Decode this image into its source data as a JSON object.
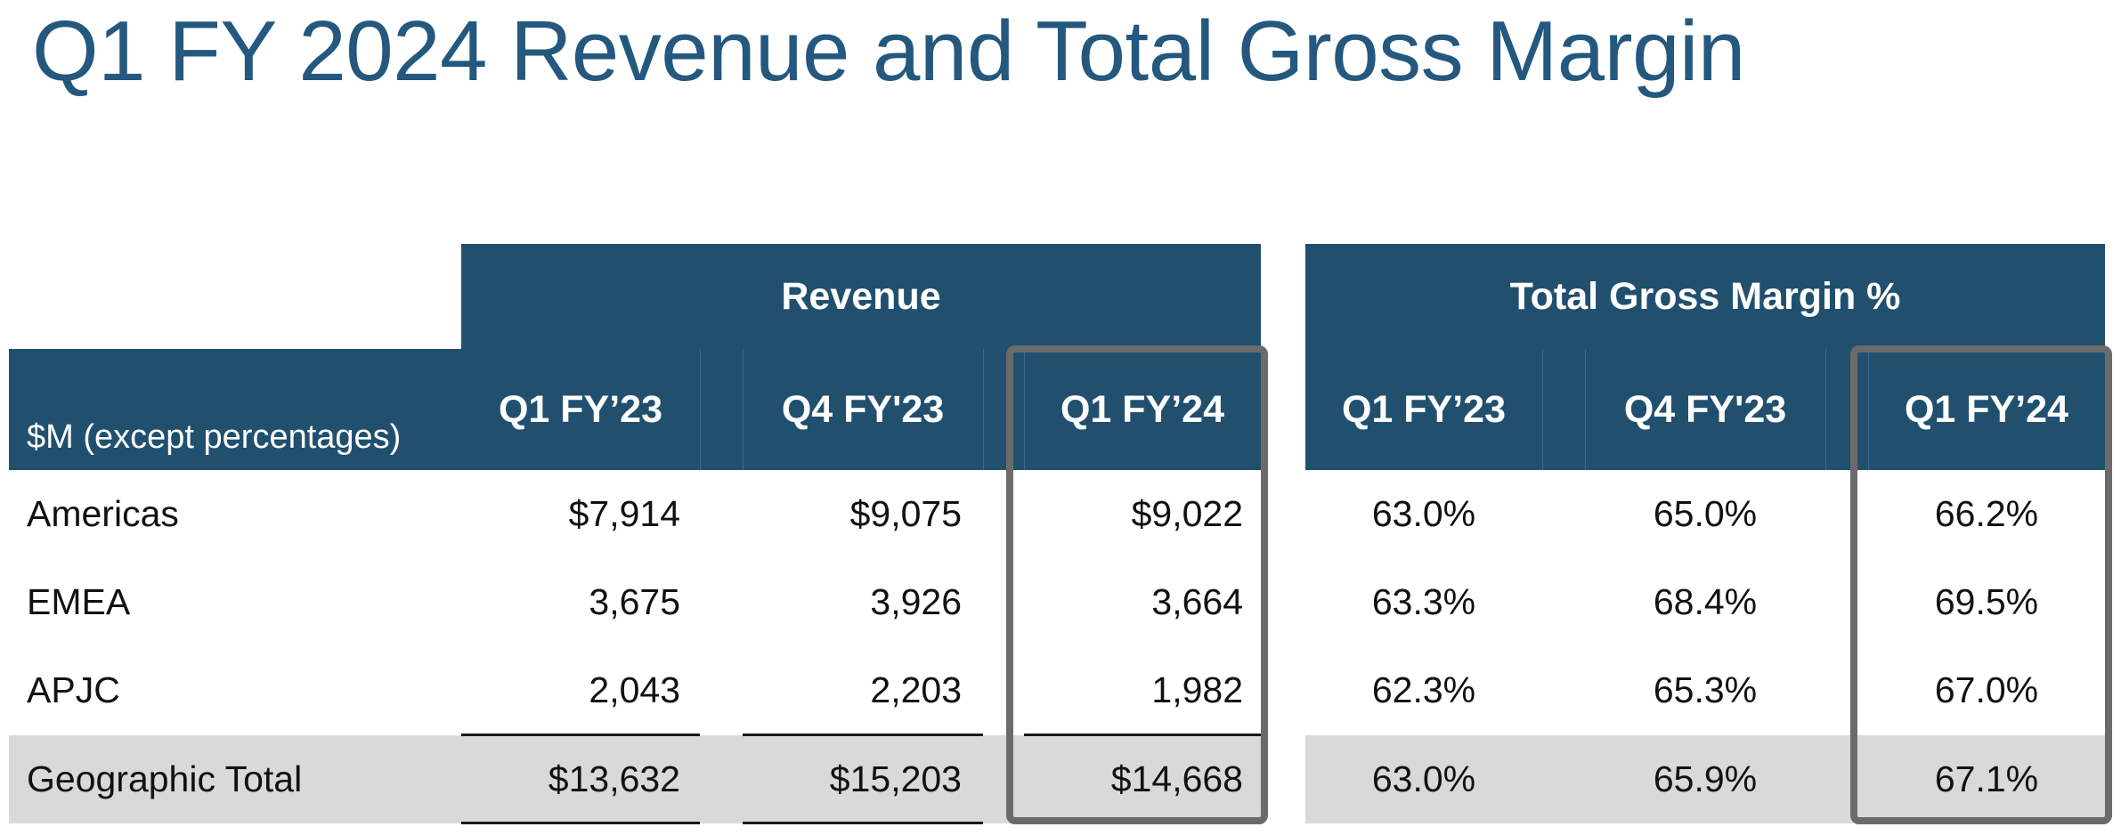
{
  "title": "Q1 FY 2024 Revenue and Total Gross Margin",
  "table": {
    "units_label": "$M (except percentages)",
    "revenue_group": "Revenue",
    "margin_group": "Total Gross Margin %",
    "columns": [
      "Q1 FY’23",
      "Q4 FY'23",
      "Q1 FY’24"
    ],
    "margin_columns": [
      "Q1 FY’23",
      "Q4 FY'23",
      "Q1 FY’24"
    ],
    "rows": [
      {
        "label": "Americas",
        "revenue": [
          "$7,914",
          "$9,075",
          "$9,022"
        ],
        "margin": [
          "63.0%",
          "65.0%",
          "66.2%"
        ]
      },
      {
        "label": "EMEA",
        "revenue": [
          "3,675",
          "3,926",
          "3,664"
        ],
        "margin": [
          "63.3%",
          "68.4%",
          "69.5%"
        ]
      },
      {
        "label": "APJC",
        "revenue": [
          "2,043",
          "2,203",
          "1,982"
        ],
        "margin": [
          "62.3%",
          "65.3%",
          "67.0%"
        ]
      },
      {
        "label": "Geographic Total",
        "revenue": [
          "$13,632",
          "$15,203",
          "$14,668"
        ],
        "margin": [
          "63.0%",
          "65.9%",
          "67.1%"
        ]
      }
    ]
  },
  "colors": {
    "header_navy": "#21506f",
    "title_blue": "#24587e",
    "total_row_gray": "#d9d9d9",
    "highlight_border": "#6b6b6b"
  }
}
